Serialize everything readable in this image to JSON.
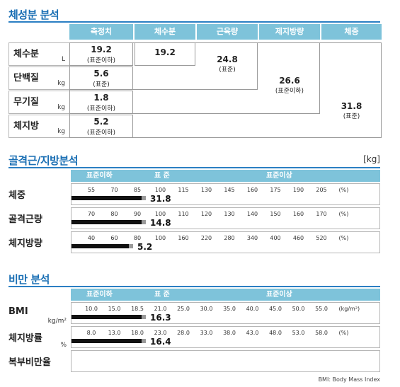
{
  "body_composition": {
    "title": "체성분 분석",
    "headers": [
      "측정치",
      "체수분",
      "근육량",
      "제지방량",
      "체중"
    ],
    "rows": [
      {
        "name": "체수분",
        "unit": "L",
        "value": "19.2",
        "range": "(표준이하)"
      },
      {
        "name": "단백질",
        "unit": "kg",
        "value": "5.6",
        "range": "(표준)"
      },
      {
        "name": "무기질",
        "unit": "kg",
        "value": "1.8",
        "range": "(표준이하)"
      },
      {
        "name": "체지방",
        "unit": "kg",
        "value": "5.2",
        "range": "(표준이하)"
      }
    ],
    "water": {
      "value": "19.2"
    },
    "muscle": {
      "value": "24.8",
      "range": "(표준)"
    },
    "ffm": {
      "value": "26.6",
      "range": "(표준이하)"
    },
    "weight": {
      "value": "31.8",
      "range": "(표준)"
    }
  },
  "muscle_fat": {
    "title": "골격근/지방분석",
    "unit": "[kg]",
    "bands": {
      "below": "표준이하",
      "standard": "표 준",
      "above": "표준이상"
    },
    "rows": [
      {
        "name": "체중",
        "unit": "",
        "ticks": [
          "55",
          "70",
          "85",
          "100",
          "115",
          "130",
          "145",
          "160",
          "175",
          "190",
          "205"
        ],
        "pct_label": "(%)",
        "value": "31.8",
        "fill": 0.24
      },
      {
        "name": "골격근량",
        "unit": "",
        "ticks": [
          "70",
          "80",
          "90",
          "100",
          "110",
          "120",
          "130",
          "140",
          "150",
          "160",
          "170"
        ],
        "pct_label": "(%)",
        "value": "14.8",
        "fill": 0.24
      },
      {
        "name": "체지방량",
        "unit": "",
        "ticks": [
          "40",
          "60",
          "80",
          "100",
          "160",
          "220",
          "280",
          "340",
          "400",
          "460",
          "520"
        ],
        "pct_label": "(%)",
        "value": "5.2",
        "fill": 0.2
      }
    ]
  },
  "obesity": {
    "title": "비만 분석",
    "bands": {
      "below": "표준이하",
      "standard": "표 준",
      "above": "표준이상"
    },
    "rows": [
      {
        "name": "BMI",
        "unit": "kg/m²",
        "ticks": [
          "10.0",
          "15.0",
          "18.5",
          "21.0",
          "25.0",
          "30.0",
          "35.0",
          "40.0",
          "45.0",
          "50.0",
          "55.0"
        ],
        "pct_label": "(kg/m²)",
        "value": "16.3",
        "fill": 0.24
      },
      {
        "name": "체지방률",
        "unit": "%",
        "ticks": [
          "8.0",
          "13.0",
          "18.0",
          "23.0",
          "28.0",
          "33.0",
          "38.0",
          "43.0",
          "48.0",
          "53.0",
          "58.0"
        ],
        "pct_label": "(%)",
        "value": "16.4",
        "fill": 0.24
      },
      {
        "name": "복부비만율",
        "unit": "",
        "ticks": [],
        "pct_label": "",
        "value": "",
        "fill": 0
      }
    ],
    "footnote": "BMI: Body Mass Index"
  }
}
